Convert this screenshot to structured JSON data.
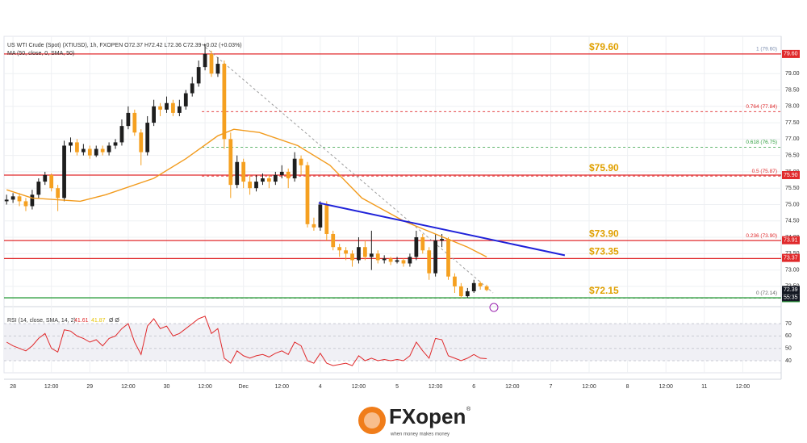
{
  "chart_data": {
    "type": "candlestick",
    "title": "US WTI Crude (Spot) (XTIUSD), 1h, FXOPEN O72.37 H72.42 L72.36 C72.39 +0.02 (+0.03%)",
    "ma_label": "MA (50, close, 0, SMA, 50)",
    "up_color": "#1e1e1e",
    "down_color": "#f5a020",
    "xlim": [
      -2.8,
      240
    ],
    "xticks": [
      {
        "value": 0,
        "label": "28"
      },
      {
        "value": 12,
        "label": "12:00"
      },
      {
        "value": 24,
        "label": "29"
      },
      {
        "value": 36,
        "label": "12:00"
      },
      {
        "value": 48,
        "label": "30"
      },
      {
        "value": 60,
        "label": "12:00"
      },
      {
        "value": 72,
        "label": "Dec"
      },
      {
        "value": 84,
        "label": "12:00"
      },
      {
        "value": 96,
        "label": "4"
      },
      {
        "value": 108,
        "label": "12:00"
      },
      {
        "value": 120,
        "label": "5"
      },
      {
        "value": 132,
        "label": "12:00"
      },
      {
        "value": 144,
        "label": "6"
      },
      {
        "value": 156,
        "label": "12:00"
      },
      {
        "value": 168,
        "label": "7"
      },
      {
        "value": 180,
        "label": "12:00"
      },
      {
        "value": 192,
        "label": "8"
      },
      {
        "value": 204,
        "label": "12:00"
      },
      {
        "value": 216,
        "label": "11"
      },
      {
        "value": 228,
        "label": "12:00"
      }
    ],
    "ylim": [
      71.93,
      80.14
    ],
    "yticks": [
      {
        "value": 79,
        "label": "79.00"
      },
      {
        "value": 78.5,
        "label": "78.50"
      },
      {
        "value": 78,
        "label": "78.00"
      },
      {
        "value": 77.5,
        "label": "77.50"
      },
      {
        "value": 77,
        "label": "77.00"
      },
      {
        "value": 76.5,
        "label": "76.50"
      },
      {
        "value": 76,
        "label": "76.00"
      },
      {
        "value": 75.5,
        "label": "75.50"
      },
      {
        "value": 75,
        "label": "75.00"
      },
      {
        "value": 74.5,
        "label": "74.50"
      },
      {
        "value": 74,
        "label": "74.00"
      },
      {
        "value": 73.5,
        "label": "73.50"
      },
      {
        "value": 73,
        "label": "73.00"
      },
      {
        "value": 72.5,
        "label": "72.50"
      }
    ],
    "x": [
      -2,
      0,
      2,
      4,
      6,
      8,
      10,
      12,
      14,
      16,
      18,
      20,
      22,
      24,
      26,
      28,
      30,
      32,
      34,
      36,
      38,
      40,
      42,
      44,
      46,
      48,
      50,
      52,
      54,
      56,
      58,
      60,
      62,
      64,
      66,
      68,
      70,
      72,
      74,
      76,
      78,
      80,
      82,
      84,
      86,
      88,
      90,
      92,
      94,
      96,
      98,
      100,
      102,
      104,
      106,
      108,
      110,
      112,
      114,
      116,
      118,
      120,
      122,
      124,
      126,
      128,
      130,
      132,
      134,
      136,
      138,
      140,
      142,
      144,
      146,
      148
    ],
    "open": [
      75.1,
      75.15,
      75.25,
      75.1,
      74.95,
      75.3,
      75.7,
      75.9,
      75.5,
      75.2,
      76.8,
      76.9,
      76.6,
      76.7,
      76.5,
      76.7,
      76.6,
      76.8,
      76.9,
      77.4,
      77.8,
      77.2,
      76.6,
      77.5,
      78.0,
      77.9,
      78.1,
      77.8,
      78.0,
      78.4,
      78.7,
      79.2,
      79.6,
      79.0,
      79.3,
      77.0,
      75.6,
      76.3,
      75.7,
      75.5,
      75.7,
      75.8,
      75.7,
      75.9,
      76.0,
      75.8,
      76.4,
      76.2,
      74.4,
      74.3,
      75.0,
      74.1,
      73.7,
      73.6,
      73.5,
      73.3,
      73.7,
      73.4,
      73.5,
      73.3,
      73.35,
      73.25,
      73.3,
      73.2,
      73.4,
      74.0,
      73.6,
      72.9,
      73.9,
      73.95,
      72.8,
      72.5,
      72.2,
      72.35,
      72.6,
      72.5
    ],
    "high": [
      75.3,
      75.35,
      75.35,
      75.2,
      75.45,
      75.8,
      76.0,
      75.95,
      75.6,
      76.95,
      77.05,
      77.0,
      76.85,
      76.8,
      76.8,
      76.8,
      76.9,
      77.0,
      77.6,
      78.0,
      77.9,
      77.3,
      77.7,
      78.2,
      78.1,
      78.3,
      78.2,
      78.2,
      78.5,
      78.9,
      79.4,
      79.9,
      79.7,
      79.5,
      79.4,
      77.2,
      76.5,
      76.4,
      75.9,
      75.9,
      75.95,
      75.9,
      76.0,
      76.2,
      76.1,
      76.6,
      76.5,
      76.3,
      74.6,
      75.1,
      75.1,
      74.2,
      73.8,
      73.7,
      73.6,
      74.0,
      73.9,
      74.2,
      73.6,
      73.45,
      73.4,
      73.4,
      73.35,
      73.5,
      74.2,
      74.1,
      73.7,
      74.1,
      74.1,
      74.0,
      72.9,
      72.6,
      72.45,
      72.7,
      72.65,
      72.55
    ],
    "low": [
      75.0,
      75.05,
      74.95,
      74.8,
      74.85,
      75.2,
      75.6,
      75.4,
      74.8,
      75.1,
      76.6,
      76.5,
      76.5,
      76.4,
      76.45,
      76.5,
      76.5,
      76.7,
      76.8,
      77.3,
      77.1,
      76.2,
      76.5,
      77.4,
      77.7,
      77.8,
      77.7,
      77.7,
      77.9,
      78.3,
      78.6,
      79.1,
      78.9,
      78.9,
      76.7,
      75.2,
      75.5,
      75.5,
      75.3,
      75.4,
      75.6,
      75.5,
      75.6,
      75.8,
      75.5,
      75.7,
      75.9,
      74.3,
      74.2,
      74.2,
      73.9,
      73.6,
      73.4,
      73.3,
      73.1,
      73.2,
      73.3,
      73.0,
      73.2,
      73.2,
      73.15,
      73.2,
      73.1,
      73.1,
      73.3,
      73.5,
      72.7,
      72.8,
      73.7,
      72.7,
      72.3,
      72.15,
      72.15,
      72.3,
      72.4,
      72.35
    ],
    "close": [
      75.15,
      75.25,
      75.1,
      74.95,
      75.3,
      75.7,
      75.9,
      75.5,
      75.2,
      76.8,
      76.9,
      76.6,
      76.7,
      76.5,
      76.7,
      76.6,
      76.8,
      76.9,
      77.4,
      77.8,
      77.2,
      76.6,
      77.5,
      78.0,
      77.9,
      78.1,
      77.8,
      78.0,
      78.4,
      78.7,
      79.2,
      79.6,
      79.0,
      79.3,
      77.0,
      75.6,
      76.3,
      75.7,
      75.5,
      75.7,
      75.8,
      75.7,
      75.9,
      76.0,
      75.8,
      76.4,
      76.2,
      74.4,
      74.3,
      75.0,
      74.1,
      73.7,
      73.6,
      73.5,
      73.3,
      73.7,
      73.4,
      73.5,
      73.3,
      73.35,
      73.25,
      73.3,
      73.2,
      73.4,
      74.0,
      73.6,
      72.9,
      73.9,
      73.95,
      72.8,
      72.5,
      72.2,
      72.35,
      72.6,
      72.5,
      72.39
    ],
    "sma": {
      "color": "#f29b1d",
      "x": [
        -2,
        6,
        21,
        29,
        44,
        54,
        64,
        69,
        77,
        89,
        99,
        109,
        122,
        132,
        142,
        148
      ],
      "values": [
        75.45,
        75.2,
        75.1,
        75.3,
        75.8,
        76.4,
        77.1,
        77.3,
        77.2,
        76.8,
        76.2,
        75.2,
        74.5,
        74.1,
        73.7,
        73.4
      ]
    },
    "trend_line": {
      "color": "#1f22d9",
      "x": [
        95.5,
        172.4
      ],
      "values": [
        75.05,
        73.45
      ]
    },
    "diagonal": {
      "color": "#9e9e9e",
      "x": [
        59,
        150
      ],
      "values": [
        79.9,
        72.3
      ]
    },
    "levels": [
      {
        "value": 79.6,
        "label": "$79.60",
        "color": "#e0292b"
      },
      {
        "value": 75.9,
        "label": "$75.90",
        "color": "#e0292b"
      },
      {
        "value": 73.9,
        "label": "$73.90",
        "color": "#e0292b"
      },
      {
        "value": 73.35,
        "label": "$73.35",
        "color": "#e0292b"
      },
      {
        "value": 72.15,
        "label": "$72.15",
        "color": "#2e9e3e"
      }
    ],
    "level_label_color": "#e0a000",
    "fib": [
      {
        "value": 79.6,
        "label": "1 (79.60)",
        "color": "#7e8fb0"
      },
      {
        "value": 77.84,
        "label": "0.764 (77.84)",
        "color": "#e0292b"
      },
      {
        "value": 76.75,
        "label": "0.618 (76.75)",
        "color": "#2e9e3e"
      },
      {
        "value": 75.87,
        "label": "0.5 (75.87)",
        "color": "#e0292b"
      },
      {
        "value": 73.9,
        "label": "0.236 (73.90)",
        "color": "#e0292b"
      },
      {
        "value": 72.14,
        "label": "0 (72.14)",
        "color": "#666666"
      }
    ],
    "price_tags": [
      {
        "value": 79.6,
        "label": "79.60",
        "color": "#e0292b"
      },
      {
        "value": 75.9,
        "label": "75.90",
        "color": "#e0292b"
      },
      {
        "value": 73.91,
        "label": "73.91",
        "color": "#e0292b"
      },
      {
        "value": 73.37,
        "label": "73.37",
        "color": "#e0292b"
      },
      {
        "value": 72.39,
        "label": "72.39",
        "color": "#131722"
      },
      {
        "value": 72.14,
        "label": "72.14",
        "color": "#2e9e3e"
      }
    ],
    "countdown": "55:35",
    "rsi": {
      "label": "RSI (14, close, SMA, 14, 2)",
      "value_label": "41.61",
      "ma_label": "41.87",
      "extra": "Ø Ø",
      "color": "#e0292b",
      "ylim": [
        30.2,
        80.5
      ],
      "yticks": [
        70,
        60,
        50,
        40
      ],
      "values": [
        55,
        52,
        50,
        48,
        52,
        58,
        62,
        50,
        47,
        65,
        64,
        60,
        58,
        55,
        57,
        52,
        58,
        60,
        66,
        70,
        55,
        45,
        68,
        74,
        66,
        68,
        60,
        62,
        66,
        70,
        74,
        76,
        62,
        66,
        42,
        38,
        48,
        44,
        42,
        44,
        45,
        43,
        46,
        48,
        45,
        55,
        52,
        40,
        38,
        46,
        38,
        36,
        37,
        38,
        36,
        44,
        40,
        42,
        40,
        41,
        40,
        41,
        40,
        44,
        55,
        48,
        42,
        58,
        57,
        44,
        42,
        40,
        42,
        45,
        42,
        41.61
      ]
    },
    "logo": {
      "brand": "FXopen",
      "tagline": "when money makes money",
      "mark": "®"
    }
  }
}
